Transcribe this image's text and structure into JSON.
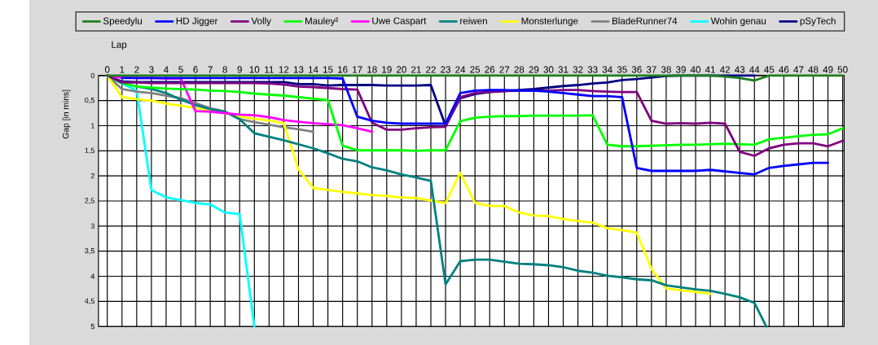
{
  "chart_data": {
    "type": "line",
    "xlabel": "Lap",
    "ylabel": "Gap [in mins]",
    "x": [
      0,
      1,
      2,
      3,
      4,
      5,
      6,
      7,
      8,
      9,
      10,
      11,
      12,
      13,
      14,
      15,
      16,
      17,
      18,
      19,
      20,
      21,
      22,
      23,
      24,
      25,
      26,
      27,
      28,
      29,
      30,
      31,
      32,
      33,
      34,
      35,
      36,
      37,
      38,
      39,
      40,
      41,
      42,
      43,
      44,
      45,
      46,
      47,
      48,
      49,
      50
    ],
    "xlim": [
      -0.6,
      50.1
    ],
    "ylim": [
      5,
      0
    ],
    "xticks": [
      0,
      1,
      2,
      3,
      4,
      5,
      6,
      7,
      8,
      9,
      10,
      11,
      12,
      13,
      14,
      15,
      16,
      17,
      18,
      19,
      20,
      21,
      22,
      23,
      24,
      25,
      26,
      27,
      28,
      29,
      30,
      31,
      32,
      33,
      34,
      35,
      36,
      37,
      38,
      39,
      40,
      41,
      42,
      43,
      44,
      45,
      46,
      47,
      48,
      49,
      50
    ],
    "yticks": [
      0,
      {
        "value": 0.5,
        "label": "0,5"
      },
      1,
      {
        "value": 1.5,
        "label": "1,5"
      },
      2,
      {
        "value": 2.5,
        "label": "2,5"
      },
      3,
      {
        "value": 3.5,
        "label": "3,5"
      },
      4,
      {
        "value": 4.5,
        "label": "4,5"
      },
      5
    ],
    "grid": true,
    "legend": "top",
    "series": [
      {
        "name": "Speedylu",
        "color": "#1e7f1e",
        "values": [
          0,
          0,
          0,
          0,
          0,
          0,
          0,
          0,
          0,
          0,
          0,
          0,
          0,
          0,
          0,
          0,
          0,
          0,
          0,
          0,
          0,
          0,
          0,
          0,
          0,
          0,
          0,
          0,
          0,
          0,
          0,
          0,
          0,
          0,
          0,
          0,
          0,
          0,
          0,
          0,
          0,
          0,
          0.02,
          0.05,
          0.1,
          0,
          0,
          0,
          0,
          0,
          0
        ]
      },
      {
        "name": "HD Jigger",
        "color": "#0000ff",
        "values": [
          null,
          0.05,
          0.05,
          0.05,
          0.05,
          0.05,
          0.05,
          0.05,
          0.05,
          0.05,
          0.05,
          0.05,
          0.05,
          0.05,
          0.05,
          0.05,
          0.06,
          0.82,
          0.9,
          0.94,
          0.96,
          0.96,
          0.96,
          0.96,
          0.35,
          0.3,
          0.29,
          0.29,
          0.3,
          0.3,
          0.32,
          0.35,
          0.38,
          0.41,
          0.41,
          0.43,
          1.84,
          1.9,
          1.9,
          1.9,
          1.9,
          1.88,
          1.91,
          1.94,
          1.97,
          1.84,
          1.8,
          1.77,
          1.74,
          1.74,
          null
        ]
      },
      {
        "name": "Volly",
        "color": "#800080",
        "values": [
          0,
          0.14,
          0.14,
          0.15,
          0.15,
          0.15,
          0.15,
          0.15,
          0.15,
          0.15,
          0.15,
          0.16,
          0.18,
          0.22,
          0.23,
          0.25,
          0.27,
          0.28,
          0.94,
          1.08,
          1.08,
          1.05,
          1.03,
          1.02,
          0.43,
          0.35,
          0.32,
          0.31,
          0.3,
          0.3,
          0.3,
          0.29,
          0.29,
          0.31,
          0.32,
          0.33,
          0.33,
          0.9,
          0.96,
          0.95,
          0.96,
          0.94,
          0.96,
          1.52,
          1.6,
          1.45,
          1.38,
          1.35,
          1.35,
          1.41,
          1.3
        ]
      },
      {
        "name": "Mauley²",
        "color": "#00ff00",
        "values": [
          0,
          0.15,
          0.22,
          0.24,
          0.26,
          0.27,
          0.28,
          0.3,
          0.31,
          0.33,
          0.36,
          0.38,
          0.4,
          0.43,
          0.46,
          0.49,
          1.4,
          1.49,
          1.49,
          1.49,
          1.49,
          1.5,
          1.49,
          1.49,
          0.91,
          0.84,
          0.82,
          0.81,
          0.81,
          0.8,
          0.8,
          0.8,
          0.8,
          0.79,
          1.38,
          1.41,
          1.41,
          1.4,
          1.39,
          1.38,
          1.38,
          1.37,
          1.36,
          1.37,
          1.38,
          1.27,
          1.24,
          1.21,
          1.18,
          1.17,
          1.05
        ]
      },
      {
        "name": "Uwe Caspart",
        "color": "#ff00ff",
        "values": [
          0,
          0.04,
          0.05,
          0.05,
          0.06,
          0.06,
          0.71,
          0.72,
          0.75,
          0.78,
          0.79,
          0.83,
          0.89,
          0.92,
          0.95,
          0.97,
          0.99,
          1.05,
          1.12,
          null,
          null,
          null,
          null,
          null,
          null,
          null,
          null,
          null,
          null,
          null,
          null,
          null,
          null,
          null,
          null,
          null,
          null,
          null,
          null,
          null,
          null,
          null,
          null,
          null,
          null,
          null,
          null,
          null,
          null,
          null,
          null
        ]
      },
      {
        "name": "reiwen",
        "color": "#008080",
        "x": [
          0,
          1,
          2,
          3,
          4,
          5,
          6,
          7,
          8,
          9,
          10,
          11,
          12,
          13,
          14,
          15,
          16,
          17,
          18,
          19,
          20,
          21,
          22,
          23,
          24,
          25,
          26,
          27,
          28,
          29,
          30,
          31,
          32,
          33,
          34,
          35,
          36,
          37,
          38,
          39,
          40,
          41,
          42,
          43,
          44,
          44.8
        ],
        "values": [
          0,
          0.15,
          0.22,
          0.27,
          0.35,
          0.48,
          0.59,
          0.67,
          0.72,
          0.87,
          1.15,
          1.22,
          1.29,
          1.37,
          1.45,
          1.55,
          1.66,
          1.71,
          1.83,
          1.89,
          1.97,
          2.03,
          2.1,
          4.16,
          3.7,
          3.67,
          3.67,
          3.71,
          3.75,
          3.76,
          3.78,
          3.82,
          3.89,
          3.93,
          3.99,
          4.02,
          4.06,
          4.08,
          4.18,
          4.22,
          4.26,
          4.29,
          4.35,
          4.42,
          4.53,
          5
        ]
      },
      {
        "name": "Monsterlunge",
        "color": "#ffff00",
        "values": [
          0,
          0.43,
          0.47,
          0.5,
          0.56,
          0.6,
          0.65,
          0.7,
          0.75,
          0.82,
          0.86,
          0.9,
          0.95,
          1.87,
          2.24,
          2.28,
          2.32,
          2.35,
          2.38,
          2.4,
          2.43,
          2.44,
          2.49,
          2.54,
          1.94,
          2.54,
          2.6,
          2.6,
          2.73,
          2.79,
          2.8,
          2.86,
          2.9,
          2.93,
          3.04,
          3.08,
          3.13,
          3.85,
          4.24,
          4.28,
          4.31,
          4.35,
          null,
          null,
          null,
          null,
          null,
          null,
          null,
          null,
          null
        ]
      },
      {
        "name": "BladeRunner74",
        "color": "#808080",
        "values": [
          0,
          0.27,
          0.32,
          0.35,
          0.4,
          0.45,
          0.55,
          0.65,
          0.72,
          0.87,
          0.93,
          0.98,
          1.03,
          1.07,
          1.12,
          null,
          null,
          null,
          null,
          null,
          null,
          null,
          null,
          null,
          null,
          null,
          null,
          null,
          null,
          null,
          null,
          null,
          null,
          null,
          null,
          null,
          null,
          null,
          null,
          null,
          null,
          null,
          null,
          null,
          null,
          null,
          null,
          null,
          null,
          null,
          null
        ]
      },
      {
        "name": "Wohin genau",
        "color": "#00ffff",
        "values": [
          0,
          0.16,
          0.3,
          2.28,
          2.43,
          2.48,
          2.54,
          2.57,
          2.73,
          2.76,
          5,
          null,
          null,
          null,
          null,
          null,
          null,
          null,
          null,
          null,
          null,
          null,
          null,
          null,
          null,
          null,
          null,
          null,
          null,
          null,
          null,
          null,
          null,
          null,
          null,
          null,
          null,
          null,
          null,
          null,
          null,
          null,
          null,
          null,
          null,
          null,
          null,
          null,
          null,
          null,
          null
        ]
      },
      {
        "name": "pSyTech",
        "color": "#000080",
        "values": [
          0,
          0.12,
          0.13,
          0.13,
          0.13,
          0.13,
          0.13,
          0.13,
          0.13,
          0.13,
          0.13,
          0.13,
          0.13,
          0.17,
          0.17,
          0.2,
          0.19,
          0.19,
          0.19,
          0.2,
          0.2,
          0.2,
          0.19,
          1.0,
          0.45,
          0.37,
          0.33,
          0.31,
          0.29,
          0.27,
          0.24,
          0.21,
          0.19,
          0.16,
          0.14,
          0.09,
          0.07,
          0.04,
          0.01,
          0,
          0,
          0,
          0,
          0,
          0,
          null,
          null,
          null,
          null,
          null,
          null
        ]
      }
    ]
  }
}
